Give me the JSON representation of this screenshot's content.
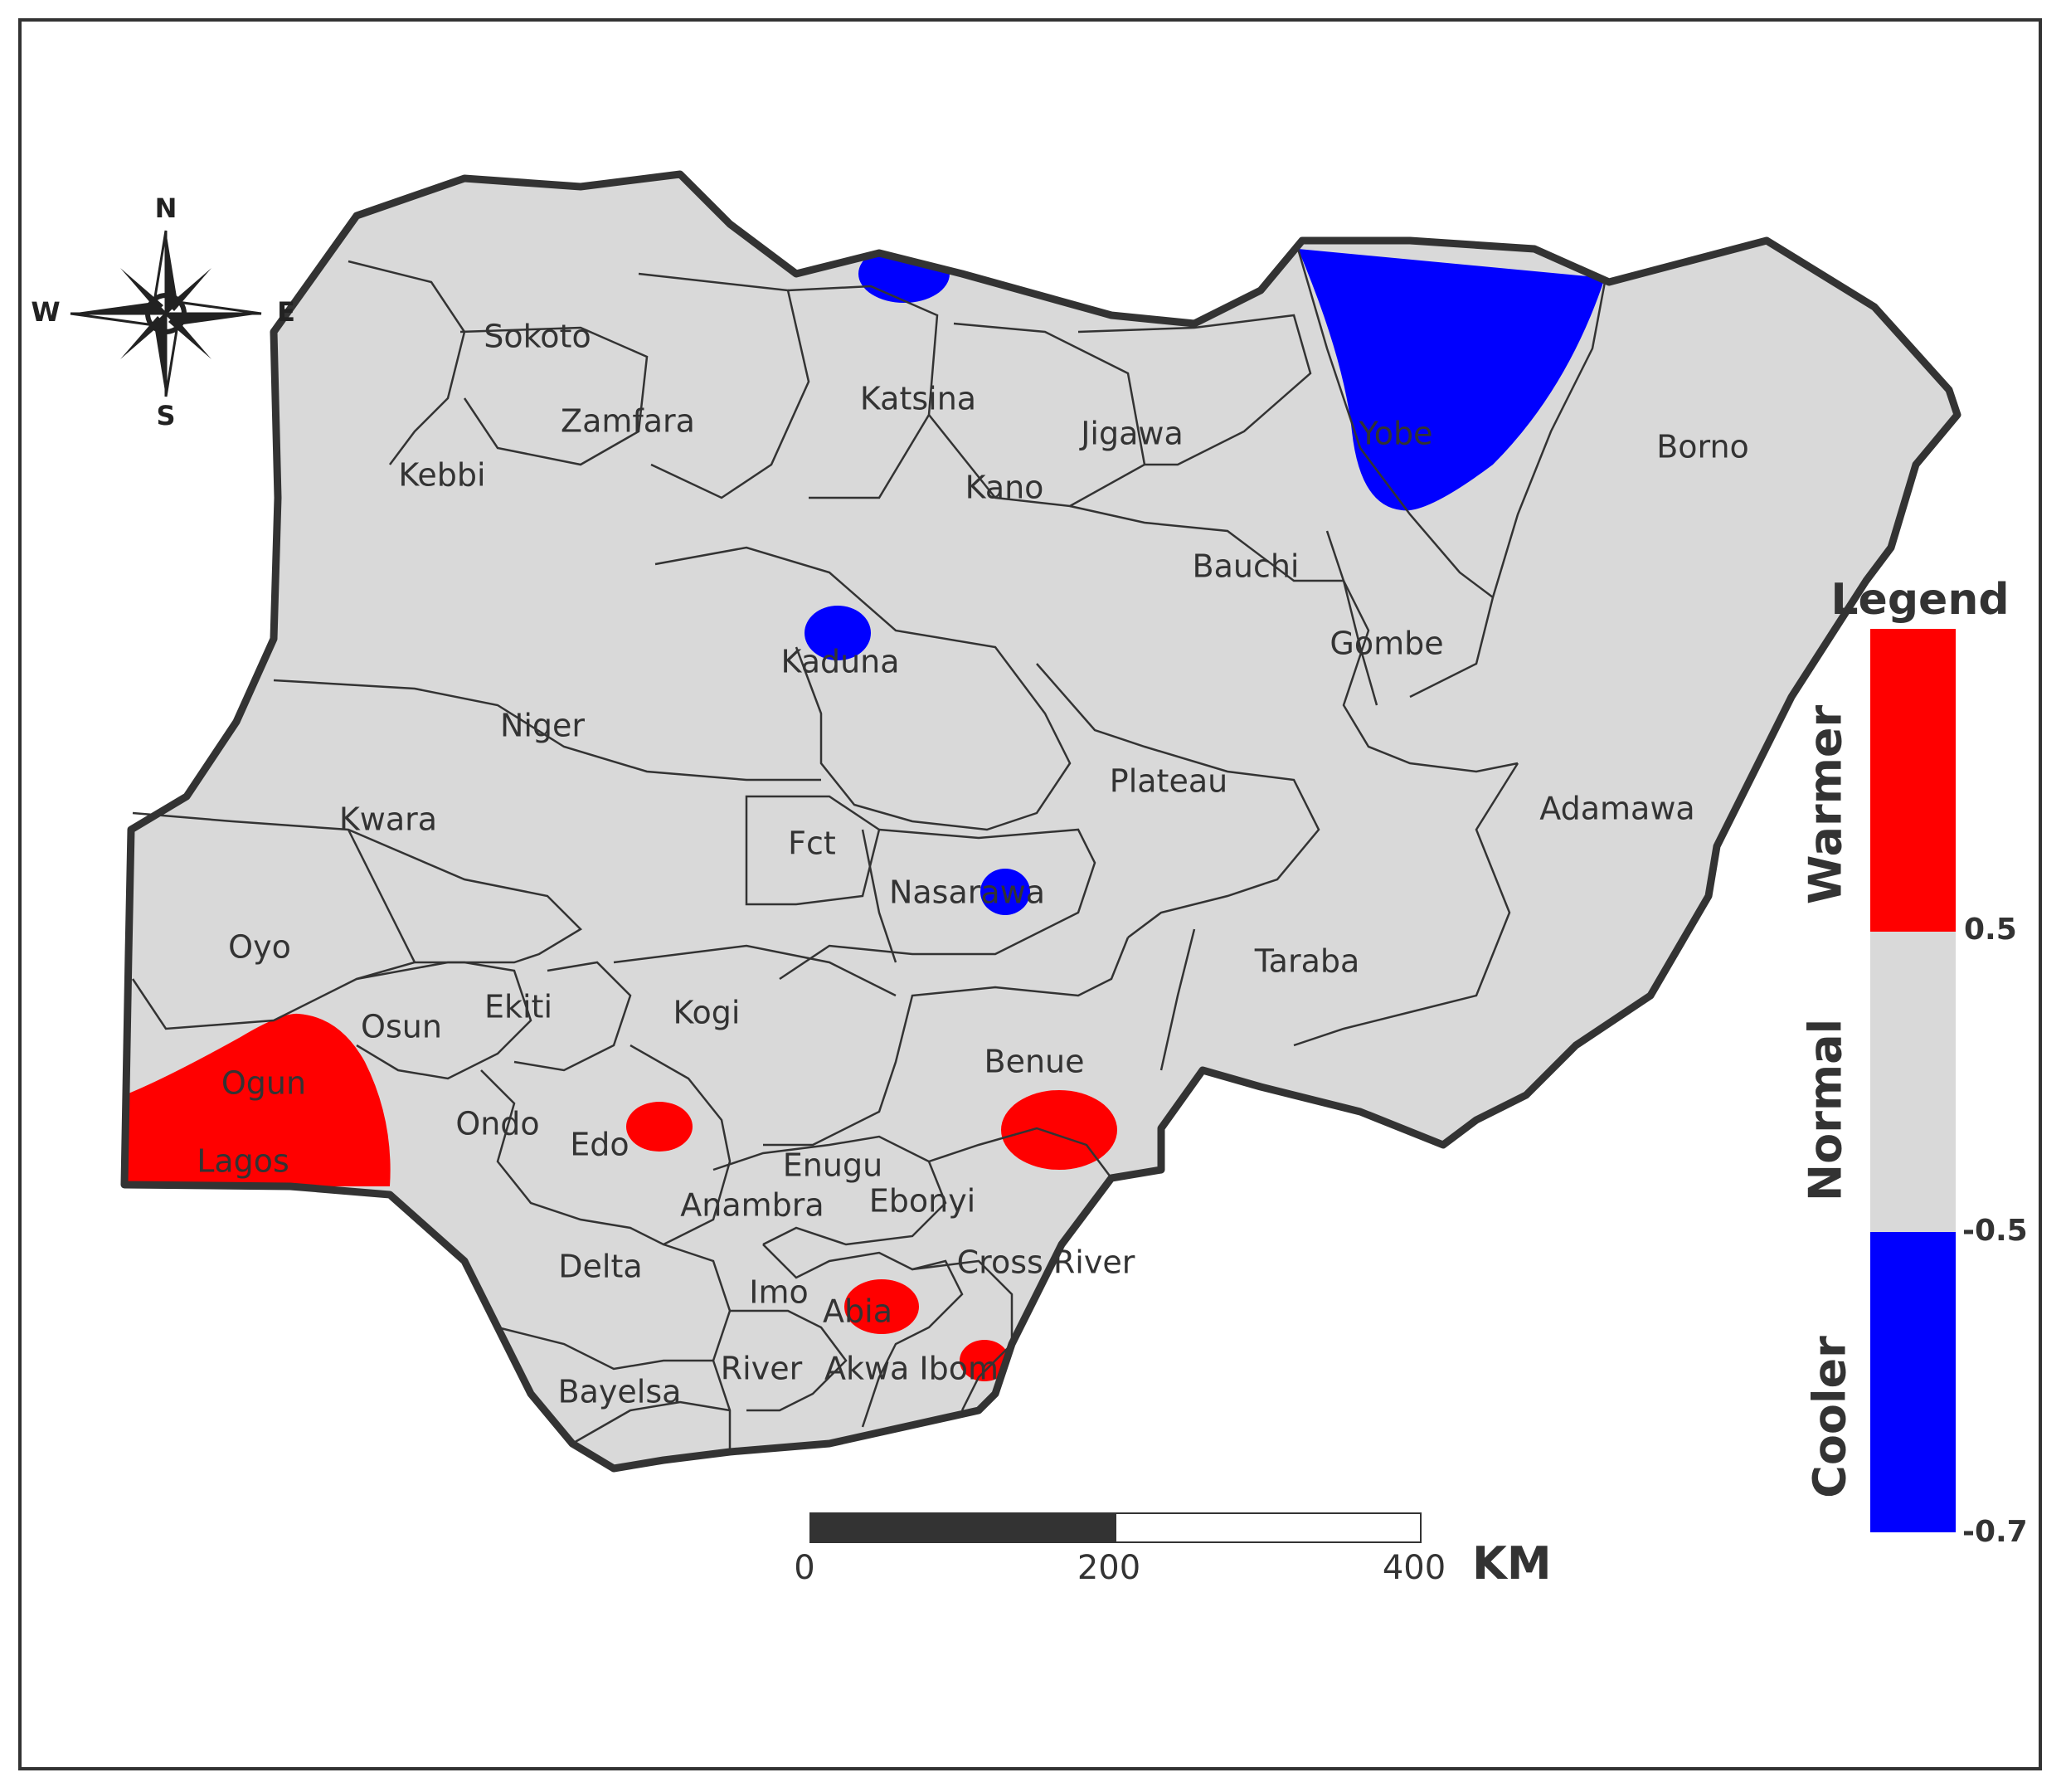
{
  "map": {
    "states": [
      {
        "name": "Sokoto"
      },
      {
        "name": "Zamfara"
      },
      {
        "name": "Kebbi"
      },
      {
        "name": "Katsina"
      },
      {
        "name": "Jigawa"
      },
      {
        "name": "Kano"
      },
      {
        "name": "Yobe"
      },
      {
        "name": "Borno"
      },
      {
        "name": "Bauchi"
      },
      {
        "name": "Gombe"
      },
      {
        "name": "Kaduna"
      },
      {
        "name": "Niger"
      },
      {
        "name": "Plateau"
      },
      {
        "name": "Adamawa"
      },
      {
        "name": "Kwara"
      },
      {
        "name": "Fct"
      },
      {
        "name": "Nasarawa"
      },
      {
        "name": "Oyo"
      },
      {
        "name": "Taraba"
      },
      {
        "name": "Ekiti"
      },
      {
        "name": "Kogi"
      },
      {
        "name": "Osun"
      },
      {
        "name": "Benue"
      },
      {
        "name": "Ogun"
      },
      {
        "name": "Ondo"
      },
      {
        "name": "Edo"
      },
      {
        "name": "Lagos"
      },
      {
        "name": "Enugu"
      },
      {
        "name": "Anambra"
      },
      {
        "name": "Ebonyi"
      },
      {
        "name": "Cross River"
      },
      {
        "name": "Delta"
      },
      {
        "name": "Imo"
      },
      {
        "name": "Abia"
      },
      {
        "name": "River"
      },
      {
        "name": "Akwa Ibom"
      },
      {
        "name": "Bayelsa"
      }
    ],
    "colors": {
      "land": "#d9d9d9",
      "warmer": "#ff0000",
      "cooler": "#0000ff",
      "border": "#333333"
    }
  },
  "compass": {
    "north": "N",
    "south": "S",
    "east": "E",
    "west": "W",
    "icon": "compass-rose-icon"
  },
  "legend": {
    "title": "Legend",
    "categories": [
      {
        "label": "Warmer",
        "color": "#ff0000"
      },
      {
        "label": "Normal",
        "color": "#d9d9d9"
      },
      {
        "label": "Cooler",
        "color": "#0000ff"
      }
    ],
    "ticks": [
      "0.5",
      "-0.5",
      "-0.7"
    ]
  },
  "scale_bar": {
    "ticks": [
      "0",
      "200",
      "400"
    ],
    "unit": "KM"
  }
}
